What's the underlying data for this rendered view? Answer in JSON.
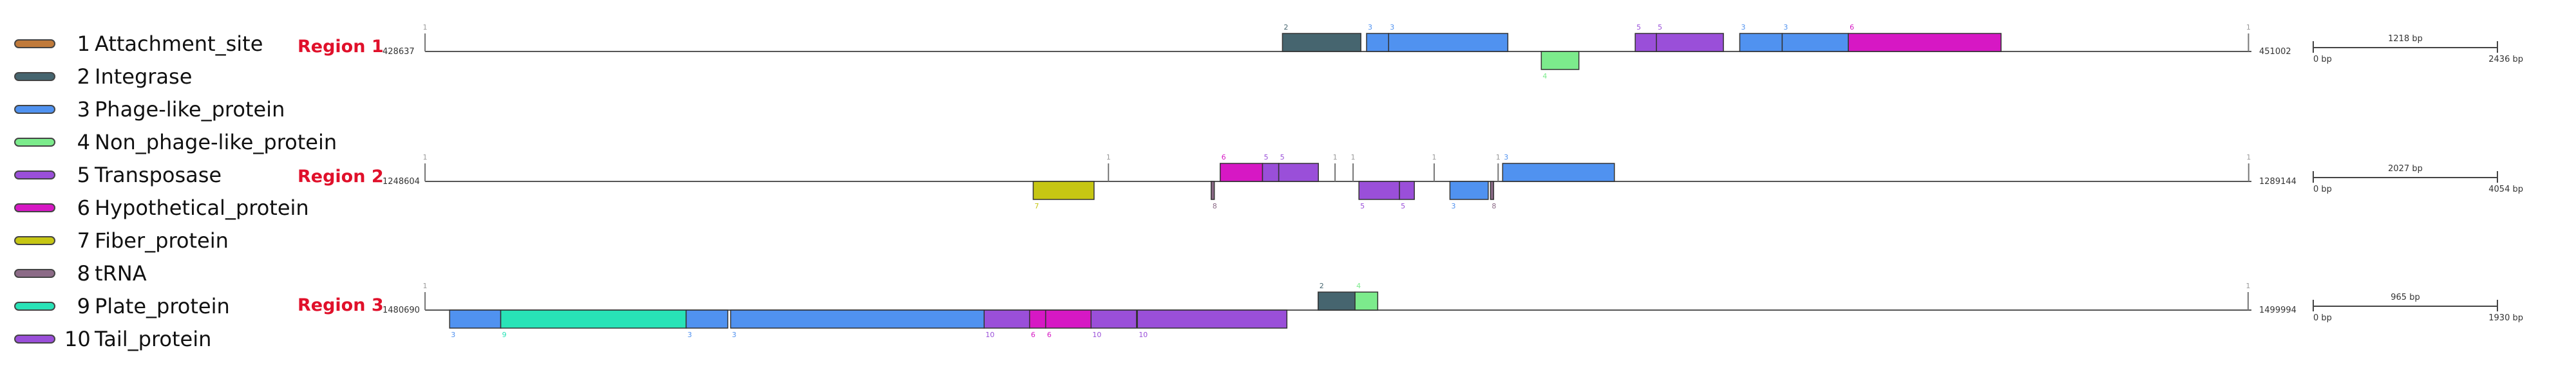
{
  "legend": [
    {
      "num": "1",
      "label": "Attachment_site",
      "color": "#c07a3a"
    },
    {
      "num": "2",
      "label": "Integrase",
      "color": "#46656f"
    },
    {
      "num": "3",
      "label": "Phage-like_protein",
      "color": "#5092f0"
    },
    {
      "num": "4",
      "label": "Non_phage-like_protein",
      "color": "#7ceb8c"
    },
    {
      "num": "5",
      "label": "Transposase",
      "color": "#9a4fd9"
    },
    {
      "num": "6",
      "label": "Hypothetical_protein",
      "color": "#d618c4"
    },
    {
      "num": "7",
      "label": "Fiber_protein",
      "color": "#c6c613"
    },
    {
      "num": "8",
      "label": "tRNA",
      "color": "#8c6b87"
    },
    {
      "num": "9",
      "label": "Plate_protein",
      "color": "#28e3b7"
    },
    {
      "num": "10",
      "label": "Tail_protein",
      "color": "#9a4fd9"
    }
  ],
  "regions": [
    {
      "name": "Region 1",
      "start_label": "428637",
      "end_label": "451002",
      "length_bp": 22366,
      "scale": {
        "mid": "1218 bp",
        "left": "0 bp",
        "right": "2436 bp"
      },
      "features": [
        {
          "type": 1,
          "start": 0,
          "end": 40,
          "strand": "mark"
        },
        {
          "type": 2,
          "start": 10500,
          "end": 11460,
          "strand": "+"
        },
        {
          "type": 3,
          "start": 11530,
          "end": 11800,
          "strand": "+"
        },
        {
          "type": 3,
          "start": 11800,
          "end": 13260,
          "strand": "+"
        },
        {
          "type": 4,
          "start": 13670,
          "end": 14130,
          "strand": "-"
        },
        {
          "type": 5,
          "start": 14820,
          "end": 15080,
          "strand": "+"
        },
        {
          "type": 5,
          "start": 15080,
          "end": 15900,
          "strand": "+"
        },
        {
          "type": 3,
          "start": 16100,
          "end": 16620,
          "strand": "+"
        },
        {
          "type": 3,
          "start": 16620,
          "end": 17430,
          "strand": "+"
        },
        {
          "type": 6,
          "start": 17430,
          "end": 19300,
          "strand": "+"
        },
        {
          "type": 1,
          "start": 22330,
          "end": 22366,
          "strand": "mark"
        }
      ]
    },
    {
      "name": "Region 2",
      "start_label": "1248604",
      "end_label": "1289144",
      "length_bp": 40541,
      "scale": {
        "mid": "2027 bp",
        "left": "0 bp",
        "right": "4054 bp"
      },
      "features": [
        {
          "type": 1,
          "start": 0,
          "end": 60,
          "strand": "mark"
        },
        {
          "type": 7,
          "start": 13500,
          "end": 14850,
          "strand": "-"
        },
        {
          "type": 1,
          "start": 15170,
          "end": 15230,
          "strand": "mark"
        },
        {
          "type": 8,
          "start": 17450,
          "end": 17520,
          "strand": "-"
        },
        {
          "type": 6,
          "start": 17650,
          "end": 18590,
          "strand": "+"
        },
        {
          "type": 5,
          "start": 18590,
          "end": 18950,
          "strand": "+"
        },
        {
          "type": 5,
          "start": 18950,
          "end": 19830,
          "strand": "+"
        },
        {
          "type": 1,
          "start": 20200,
          "end": 20260,
          "strand": "mark"
        },
        {
          "type": 1,
          "start": 20600,
          "end": 20660,
          "strand": "mark"
        },
        {
          "type": 5,
          "start": 20730,
          "end": 21630,
          "strand": "-"
        },
        {
          "type": 5,
          "start": 21630,
          "end": 21960,
          "strand": "-"
        },
        {
          "type": 1,
          "start": 22400,
          "end": 22460,
          "strand": "mark"
        },
        {
          "type": 3,
          "start": 22750,
          "end": 23600,
          "strand": "-"
        },
        {
          "type": 8,
          "start": 23650,
          "end": 23720,
          "strand": "-"
        },
        {
          "type": 1,
          "start": 23820,
          "end": 23880,
          "strand": "mark"
        },
        {
          "type": 3,
          "start": 23920,
          "end": 26400,
          "strand": "+"
        },
        {
          "type": 1,
          "start": 40480,
          "end": 40541,
          "strand": "mark"
        }
      ]
    },
    {
      "name": "Region 3",
      "start_label": "1480690",
      "end_label": "1499994",
      "length_bp": 19305,
      "scale": {
        "mid": "965 bp",
        "left": "0 bp",
        "right": "1930 bp"
      },
      "features": [
        {
          "type": 1,
          "start": 0,
          "end": 30,
          "strand": "mark"
        },
        {
          "type": 3,
          "start": 260,
          "end": 800,
          "strand": "-"
        },
        {
          "type": 9,
          "start": 800,
          "end": 2760,
          "strand": "-"
        },
        {
          "type": 3,
          "start": 2760,
          "end": 3200,
          "strand": "-"
        },
        {
          "type": 3,
          "start": 3230,
          "end": 5910,
          "strand": "-"
        },
        {
          "type": 10,
          "start": 5910,
          "end": 6390,
          "strand": "-"
        },
        {
          "type": 6,
          "start": 6390,
          "end": 6560,
          "strand": "-"
        },
        {
          "type": 6,
          "start": 6560,
          "end": 7040,
          "strand": "-"
        },
        {
          "type": 10,
          "start": 7040,
          "end": 7520,
          "strand": "-"
        },
        {
          "type": 10,
          "start": 7530,
          "end": 9110,
          "strand": "-"
        },
        {
          "type": 2,
          "start": 9440,
          "end": 9830,
          "strand": "+"
        },
        {
          "type": 4,
          "start": 9830,
          "end": 10070,
          "strand": "+"
        },
        {
          "type": 1,
          "start": 19270,
          "end": 19305,
          "strand": "mark"
        }
      ]
    }
  ]
}
